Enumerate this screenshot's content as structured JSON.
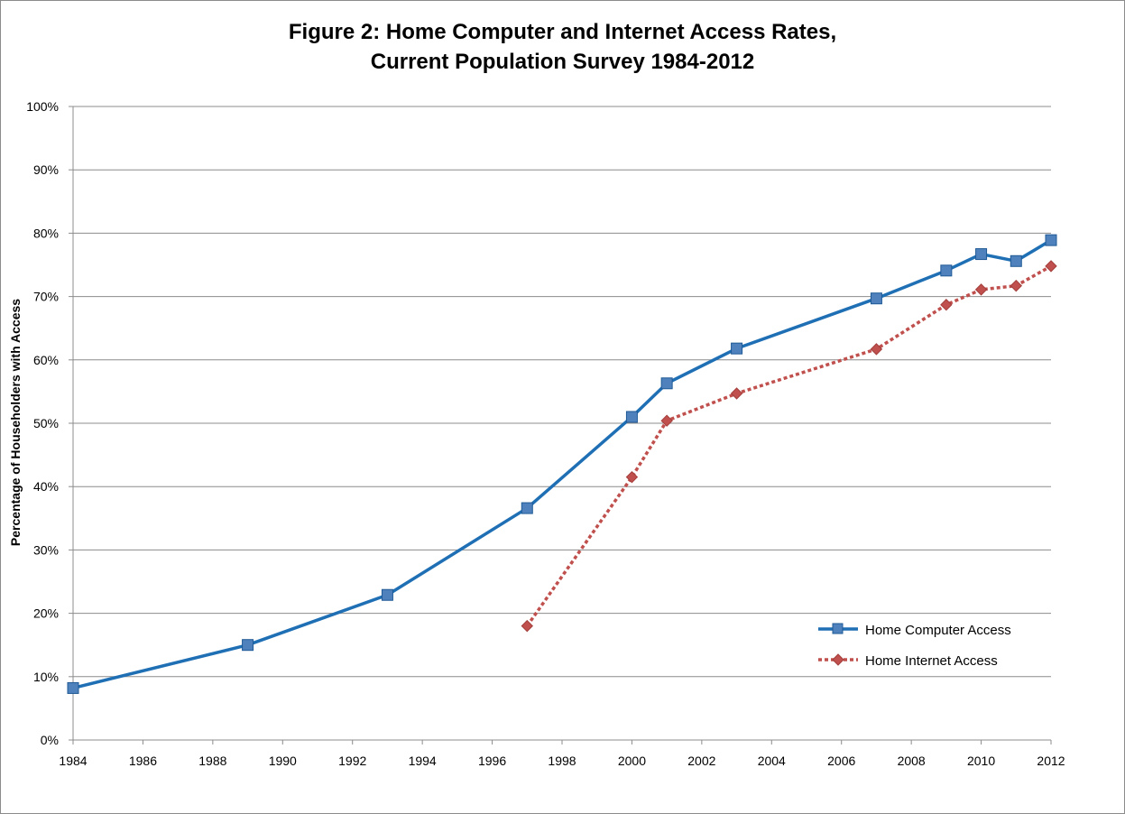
{
  "chart_data": {
    "type": "line",
    "title_lines": [
      "Figure 2: Home Computer and Internet Access Rates,",
      "Current Population Survey 1984-2012"
    ],
    "xlabel": "",
    "ylabel": "Percentage of Householders with Access",
    "xlim": [
      1984,
      2012
    ],
    "ylim": [
      0,
      100
    ],
    "x_ticks": [
      "1984",
      "1986",
      "1988",
      "1990",
      "1992",
      "1994",
      "1996",
      "1998",
      "2000",
      "2002",
      "2004",
      "2006",
      "2008",
      "2010",
      "2012"
    ],
    "y_ticks": [
      "0%",
      "10%",
      "20%",
      "30%",
      "40%",
      "50%",
      "60%",
      "70%",
      "80%",
      "90%",
      "100%"
    ],
    "grid": "horizontal",
    "legend_position": "bottom-right",
    "series": [
      {
        "name": "Home Computer Access",
        "color": "#1f6fb5",
        "marker": "square",
        "points": [
          [
            1984,
            8.2
          ],
          [
            1989,
            15.0
          ],
          [
            1993,
            22.9
          ],
          [
            1997,
            36.6
          ],
          [
            2000,
            51.0
          ],
          [
            2001,
            56.3
          ],
          [
            2003,
            61.8
          ],
          [
            2007,
            69.7
          ],
          [
            2009,
            74.1
          ],
          [
            2010,
            76.7
          ],
          [
            2011,
            75.6
          ],
          [
            2012,
            78.9
          ]
        ]
      },
      {
        "name": "Home Internet Access",
        "color": "#c0504d",
        "marker": "diamond",
        "points": [
          [
            1997,
            18.0
          ],
          [
            2000,
            41.5
          ],
          [
            2001,
            50.4
          ],
          [
            2003,
            54.7
          ],
          [
            2007,
            61.7
          ],
          [
            2009,
            68.7
          ],
          [
            2010,
            71.1
          ],
          [
            2011,
            71.7
          ],
          [
            2012,
            74.8
          ]
        ]
      }
    ]
  }
}
